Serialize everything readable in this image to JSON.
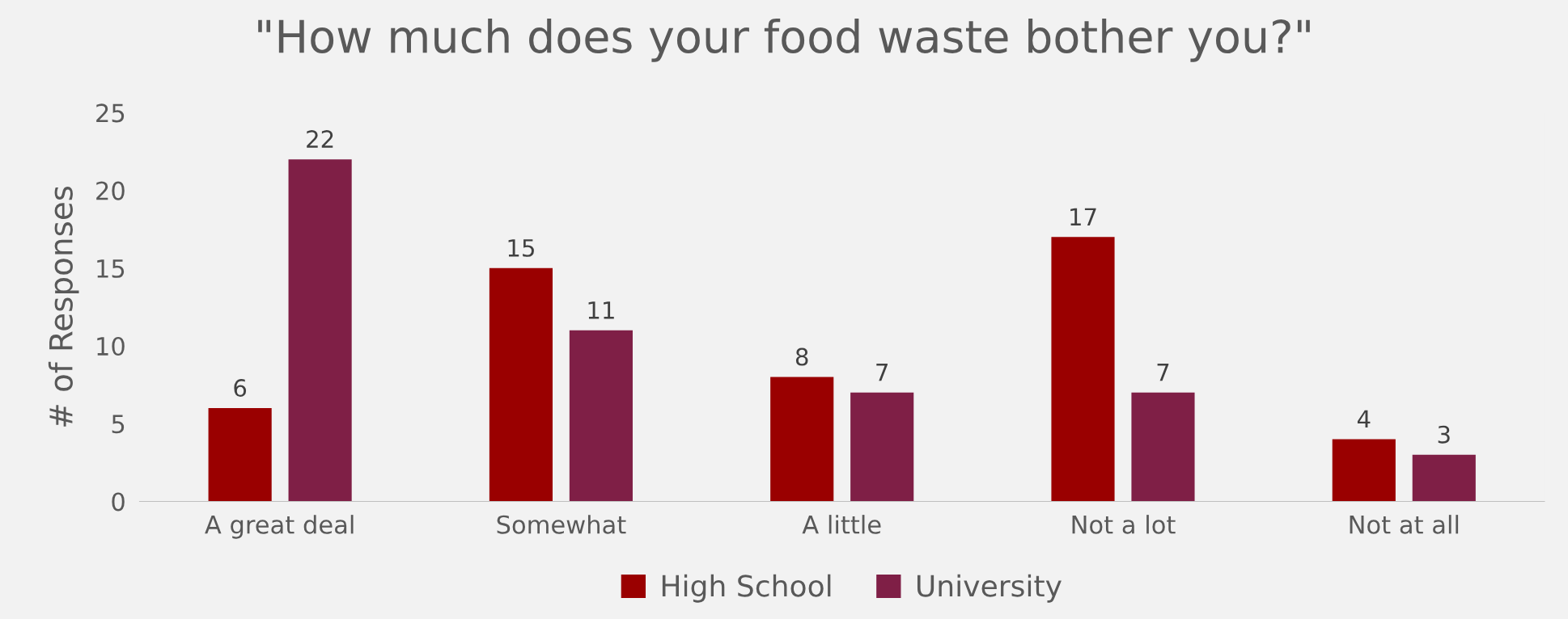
{
  "chart_data": {
    "type": "bar",
    "title": "\"How much does your food waste bother you?\"",
    "ylabel": "# of Responses",
    "categories": [
      "A great deal",
      "Somewhat",
      "A little",
      "Not a lot",
      "Not at all"
    ],
    "series": [
      {
        "name": "High School",
        "color": "#9a0000",
        "values": [
          6,
          15,
          8,
          17,
          4
        ]
      },
      {
        "name": "University",
        "color": "#7f1f46",
        "values": [
          22,
          11,
          7,
          7,
          3
        ]
      }
    ],
    "ylim": [
      0,
      25
    ],
    "yticks": [
      0,
      5,
      10,
      15,
      20,
      25
    ],
    "grid": false,
    "legend": "bottom",
    "data_labels": true
  }
}
